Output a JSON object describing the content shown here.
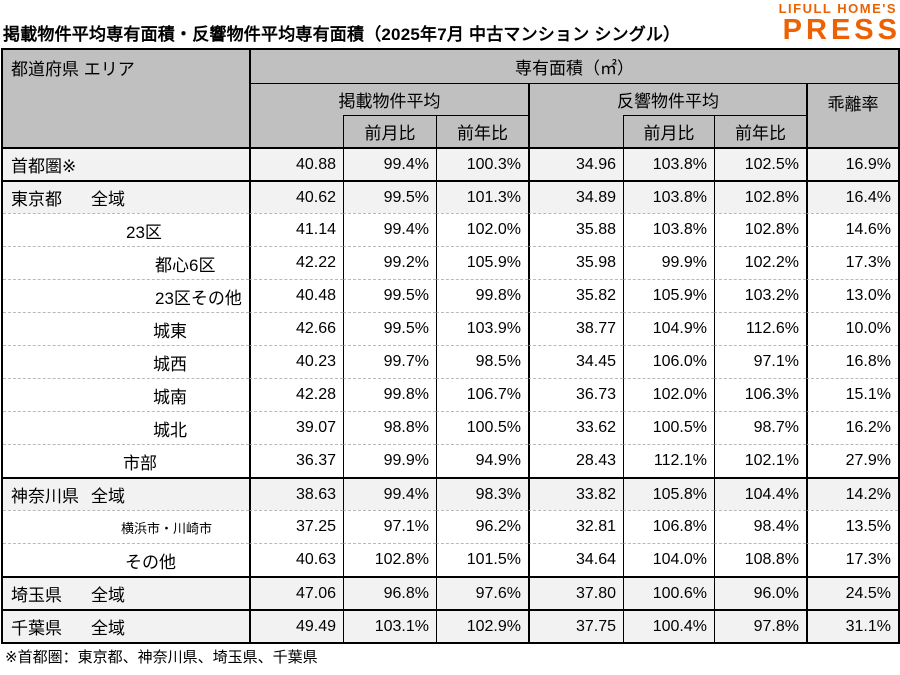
{
  "title": "掲載物件平均専有面積・反響物件平均専有面積（2025年7月 中古マンション シングル）",
  "logo": {
    "line1": "LIFULL HOME'S",
    "line2": "PRESS"
  },
  "colors": {
    "logo_orange": "#ed6103",
    "header_bg": "#c0c0c0",
    "shaded_row": "#f2f2f2",
    "dashed_border": "#b9b9b9"
  },
  "chart_data": {
    "type": "table",
    "title": "掲載物件平均専有面積・反響物件平均専有面積（2025年7月 中古マンション シングル）",
    "corner_header": "都道府県 エリア",
    "unit_header": "専有面積（㎡）",
    "column_groups": [
      "掲載物件平均",
      "反響物件平均"
    ],
    "sub_columns": [
      "前月比",
      "前年比"
    ],
    "deviation_header": "乖離率",
    "columns": [
      "エリア",
      "掲載物件平均",
      "掲載前月比",
      "掲載前年比",
      "反響物件平均",
      "反響前月比",
      "反響前年比",
      "乖離率"
    ],
    "rows": [
      {
        "label": "首都圏※",
        "indent": 8,
        "shaded": true,
        "thick": true,
        "small": false,
        "values": [
          "40.88",
          "99.4%",
          "100.3%",
          "34.96",
          "103.8%",
          "102.5%",
          "16.9%"
        ]
      },
      {
        "label": "東京都",
        "label2": "全域",
        "indent": 8,
        "shaded": true,
        "thick": true,
        "small": false,
        "values": [
          "40.62",
          "99.5%",
          "101.3%",
          "34.89",
          "103.8%",
          "102.8%",
          "16.4%"
        ]
      },
      {
        "label": "23区",
        "indent": 123,
        "shaded": false,
        "thick": false,
        "small": false,
        "values": [
          "41.14",
          "99.4%",
          "102.0%",
          "35.88",
          "103.8%",
          "102.8%",
          "14.6%"
        ]
      },
      {
        "label": "都心6区",
        "indent": 152,
        "shaded": false,
        "thick": false,
        "small": false,
        "values": [
          "42.22",
          "99.2%",
          "105.9%",
          "35.98",
          "99.9%",
          "102.2%",
          "17.3%"
        ]
      },
      {
        "label": "23区その他",
        "indent": 152,
        "shaded": false,
        "thick": false,
        "small": false,
        "values": [
          "40.48",
          "99.5%",
          "99.8%",
          "35.82",
          "105.9%",
          "103.2%",
          "13.0%"
        ]
      },
      {
        "label": "城東",
        "indent": 150,
        "shaded": false,
        "thick": false,
        "small": false,
        "values": [
          "42.66",
          "99.5%",
          "103.9%",
          "38.77",
          "104.9%",
          "112.6%",
          "10.0%"
        ]
      },
      {
        "label": "城西",
        "indent": 150,
        "shaded": false,
        "thick": false,
        "small": false,
        "values": [
          "40.23",
          "99.7%",
          "98.5%",
          "34.45",
          "106.0%",
          "97.1%",
          "16.8%"
        ]
      },
      {
        "label": "城南",
        "indent": 150,
        "shaded": false,
        "thick": false,
        "small": false,
        "values": [
          "42.28",
          "99.8%",
          "106.7%",
          "36.73",
          "102.0%",
          "106.3%",
          "15.1%"
        ]
      },
      {
        "label": "城北",
        "indent": 150,
        "shaded": false,
        "thick": false,
        "small": false,
        "values": [
          "39.07",
          "98.8%",
          "100.5%",
          "33.62",
          "100.5%",
          "98.7%",
          "16.2%"
        ]
      },
      {
        "label": "市部",
        "indent": 120,
        "shaded": false,
        "thick": false,
        "small": false,
        "values": [
          "36.37",
          "99.9%",
          "94.9%",
          "28.43",
          "112.1%",
          "102.1%",
          "27.9%"
        ]
      },
      {
        "label": "神奈川県",
        "label2": "全域",
        "indent": 8,
        "shaded": true,
        "thick": true,
        "small": false,
        "values": [
          "38.63",
          "99.4%",
          "98.3%",
          "33.82",
          "105.8%",
          "104.4%",
          "14.2%"
        ]
      },
      {
        "label": "横浜市・川崎市",
        "indent": 118,
        "shaded": false,
        "thick": false,
        "small": true,
        "values": [
          "37.25",
          "97.1%",
          "96.2%",
          "32.81",
          "106.8%",
          "98.4%",
          "13.5%"
        ]
      },
      {
        "label": "その他",
        "indent": 122,
        "shaded": false,
        "thick": false,
        "small": false,
        "values": [
          "40.63",
          "102.8%",
          "101.5%",
          "34.64",
          "104.0%",
          "108.8%",
          "17.3%"
        ]
      },
      {
        "label": "埼玉県",
        "label2": "全域",
        "indent": 8,
        "shaded": true,
        "thick": true,
        "small": false,
        "values": [
          "47.06",
          "96.8%",
          "97.6%",
          "37.80",
          "100.6%",
          "96.0%",
          "24.5%"
        ]
      },
      {
        "label": "千葉県",
        "label2": "全域",
        "indent": 8,
        "shaded": true,
        "thick": true,
        "small": false,
        "values": [
          "49.49",
          "103.1%",
          "102.9%",
          "37.75",
          "100.4%",
          "97.8%",
          "31.1%"
        ]
      }
    ],
    "footnote": "※首都圏：東京都、神奈川県、埼玉県、千葉県"
  }
}
